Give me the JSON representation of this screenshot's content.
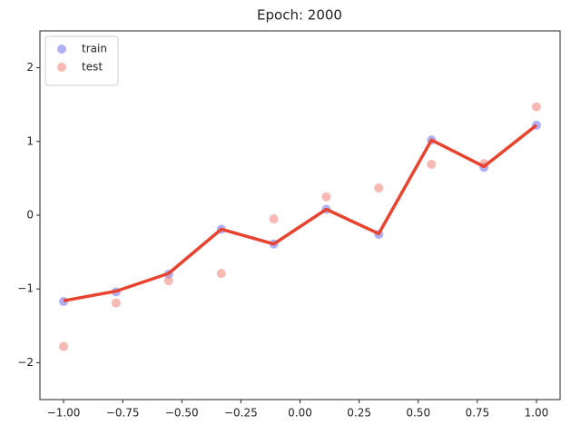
{
  "chart_data": {
    "type": "scatter",
    "title": "Epoch: 2000",
    "x": [
      -1.0,
      -0.778,
      -0.556,
      -0.333,
      -0.111,
      0.111,
      0.333,
      0.556,
      0.778,
      1.0
    ],
    "series": [
      {
        "name": "train",
        "color": "#7b7bf0",
        "values": [
          -1.17,
          -1.04,
          -0.8,
          -0.19,
          -0.39,
          0.08,
          -0.26,
          1.02,
          0.65,
          1.22
        ]
      },
      {
        "name": "test",
        "color": "#f08a80",
        "values": [
          -1.78,
          -1.19,
          -0.89,
          -0.79,
          -0.05,
          0.25,
          0.37,
          0.69,
          0.7,
          1.47
        ]
      }
    ],
    "line": {
      "color": "#e8432e",
      "values": [
        -1.16,
        -1.03,
        -0.79,
        -0.19,
        -0.39,
        0.08,
        -0.25,
        1.02,
        0.66,
        1.22
      ]
    },
    "xlim": [
      -1.1,
      1.1
    ],
    "ylim": [
      -2.5,
      2.5
    ],
    "xticks": [
      {
        "value": -1.0,
        "label": "−1.00"
      },
      {
        "value": -0.75,
        "label": "−0.75"
      },
      {
        "value": -0.5,
        "label": "−0.50"
      },
      {
        "value": -0.25,
        "label": "−0.25"
      },
      {
        "value": 0,
        "label": "0.00"
      },
      {
        "value": 0.25,
        "label": "0.25"
      },
      {
        "value": 0.5,
        "label": "0.50"
      },
      {
        "value": 0.75,
        "label": "0.75"
      },
      {
        "value": 1.0,
        "label": "1.00"
      }
    ],
    "yticks": [
      {
        "value": -2,
        "label": "−2"
      },
      {
        "value": -1,
        "label": "−1"
      },
      0,
      1,
      2
    ],
    "legend": "upper-left"
  }
}
